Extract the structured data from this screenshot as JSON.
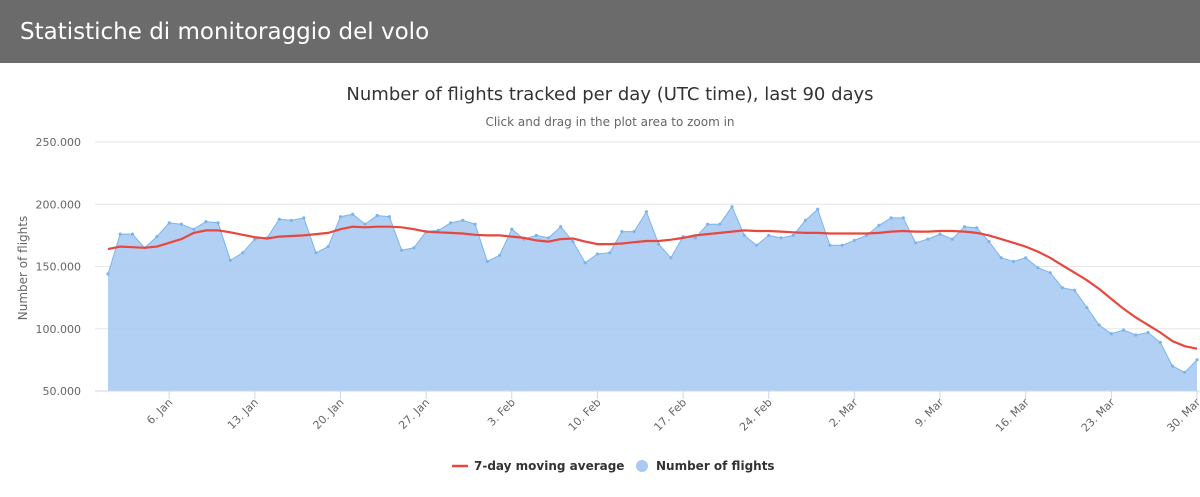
{
  "page": {
    "title": "Statistiche di monitoraggio del volo"
  },
  "chart_data": {
    "type": "area",
    "title": "Number of flights tracked per day (UTC time), last 90 days",
    "subtitle": "Click and drag in the plot area to zoom in",
    "ylabel": "Number of flights",
    "xlabel": "",
    "ylim": [
      50000,
      250000
    ],
    "yticks": [
      50000,
      100000,
      150000,
      200000,
      250000
    ],
    "ytick_labels": [
      "50.000",
      "100.000",
      "150.000",
      "200.000",
      "250.000"
    ],
    "xticks": [
      {
        "label": "6. Jan",
        "day": 5
      },
      {
        "label": "13. Jan",
        "day": 12
      },
      {
        "label": "20. Jan",
        "day": 19
      },
      {
        "label": "27. Jan",
        "day": 26
      },
      {
        "label": "3. Feb",
        "day": 33
      },
      {
        "label": "10. Feb",
        "day": 40
      },
      {
        "label": "17. Feb",
        "day": 47
      },
      {
        "label": "24. Feb",
        "day": 54
      },
      {
        "label": "2. Mar",
        "day": 61
      },
      {
        "label": "9. Mar",
        "day": 68
      },
      {
        "label": "16. Mar",
        "day": 75
      },
      {
        "label": "23. Mar",
        "day": 82
      },
      {
        "label": "30. Mar",
        "day": 89
      }
    ],
    "grid": true,
    "legend_position": "bottom-center",
    "x": [
      "1. Jan",
      "2. Jan",
      "3. Jan",
      "4. Jan",
      "5. Jan",
      "6. Jan",
      "7. Jan",
      "8. Jan",
      "9. Jan",
      "10. Jan",
      "11. Jan",
      "12. Jan",
      "13. Jan",
      "14. Jan",
      "15. Jan",
      "16. Jan",
      "17. Jan",
      "18. Jan",
      "19. Jan",
      "20. Jan",
      "21. Jan",
      "22. Jan",
      "23. Jan",
      "24. Jan",
      "25. Jan",
      "26. Jan",
      "27. Jan",
      "28. Jan",
      "29. Jan",
      "30. Jan",
      "31. Jan",
      "1. Feb",
      "2. Feb",
      "3. Feb",
      "4. Feb",
      "5. Feb",
      "6. Feb",
      "7. Feb",
      "8. Feb",
      "9. Feb",
      "10. Feb",
      "11. Feb",
      "12. Feb",
      "13. Feb",
      "14. Feb",
      "15. Feb",
      "16. Feb",
      "17. Feb",
      "18. Feb",
      "19. Feb",
      "20. Feb",
      "21. Feb",
      "22. Feb",
      "23. Feb",
      "24. Feb",
      "25. Feb",
      "26. Feb",
      "27. Feb",
      "28. Feb",
      "29. Feb",
      "1. Mar",
      "2. Mar",
      "3. Mar",
      "4. Mar",
      "5. Mar",
      "6. Mar",
      "7. Mar",
      "8. Mar",
      "9. Mar",
      "10. Mar",
      "11. Mar",
      "12. Mar",
      "13. Mar",
      "14. Mar",
      "15. Mar",
      "16. Mar",
      "17. Mar",
      "18. Mar",
      "19. Mar",
      "20. Mar",
      "21. Mar",
      "22. Mar",
      "23. Mar",
      "24. Mar",
      "25. Mar",
      "26. Mar",
      "27. Mar",
      "28. Mar",
      "29. Mar",
      "30. Mar"
    ],
    "series": [
      {
        "name": "Number of flights",
        "color": "#a9cbf2",
        "values": [
          144000,
          176000,
          176000,
          165000,
          174000,
          185000,
          184000,
          180000,
          186000,
          185000,
          155000,
          161000,
          172000,
          173000,
          188000,
          187000,
          189000,
          161000,
          166000,
          190000,
          192000,
          184000,
          191000,
          190000,
          163000,
          165000,
          178000,
          179000,
          185000,
          187000,
          184000,
          154000,
          159000,
          180000,
          172000,
          175000,
          173000,
          182000,
          170000,
          153000,
          160000,
          161000,
          178000,
          178000,
          194000,
          168000,
          157000,
          174000,
          173000,
          184000,
          184000,
          198000,
          175000,
          167000,
          175000,
          173000,
          175000,
          187000,
          196000,
          167000,
          167000,
          171000,
          175000,
          183000,
          189000,
          189000,
          169000,
          172000,
          176000,
          172000,
          182000,
          181000,
          170000,
          157000,
          154000,
          157000,
          149000,
          145000,
          133000,
          131000,
          117000,
          103000,
          96000,
          99000,
          95000,
          97000,
          89000,
          70000,
          65000,
          75000
        ]
      },
      {
        "name": "7-day moving average",
        "color": "#e8473f",
        "values": [
          164000,
          166000,
          165500,
          165000,
          166000,
          169000,
          172000,
          177000,
          179000,
          179000,
          177500,
          175500,
          173500,
          172500,
          174000,
          174500,
          175000,
          176000,
          177000,
          180000,
          182000,
          181500,
          182000,
          182000,
          181500,
          180000,
          178000,
          177500,
          177000,
          176500,
          175500,
          175000,
          175000,
          174000,
          173000,
          171000,
          170000,
          172000,
          172500,
          170000,
          168000,
          168000,
          168500,
          169500,
          170500,
          170500,
          171500,
          173000,
          175000,
          176000,
          177000,
          178000,
          179000,
          178500,
          178500,
          178000,
          177500,
          177000,
          177000,
          176500,
          176500,
          176500,
          176500,
          177000,
          178000,
          178500,
          178000,
          178000,
          178500,
          178500,
          178000,
          177000,
          175000,
          172000,
          169000,
          166000,
          162000,
          157000,
          151000,
          145000,
          139000,
          132000,
          124000,
          116000,
          109000,
          103000,
          97000,
          90000,
          86000,
          84000
        ]
      }
    ],
    "legend": [
      {
        "label": "7-day moving average",
        "marker": "line",
        "color": "#e8473f"
      },
      {
        "label": "Number of flights",
        "marker": "circle",
        "color": "#a9cbf2"
      }
    ]
  }
}
